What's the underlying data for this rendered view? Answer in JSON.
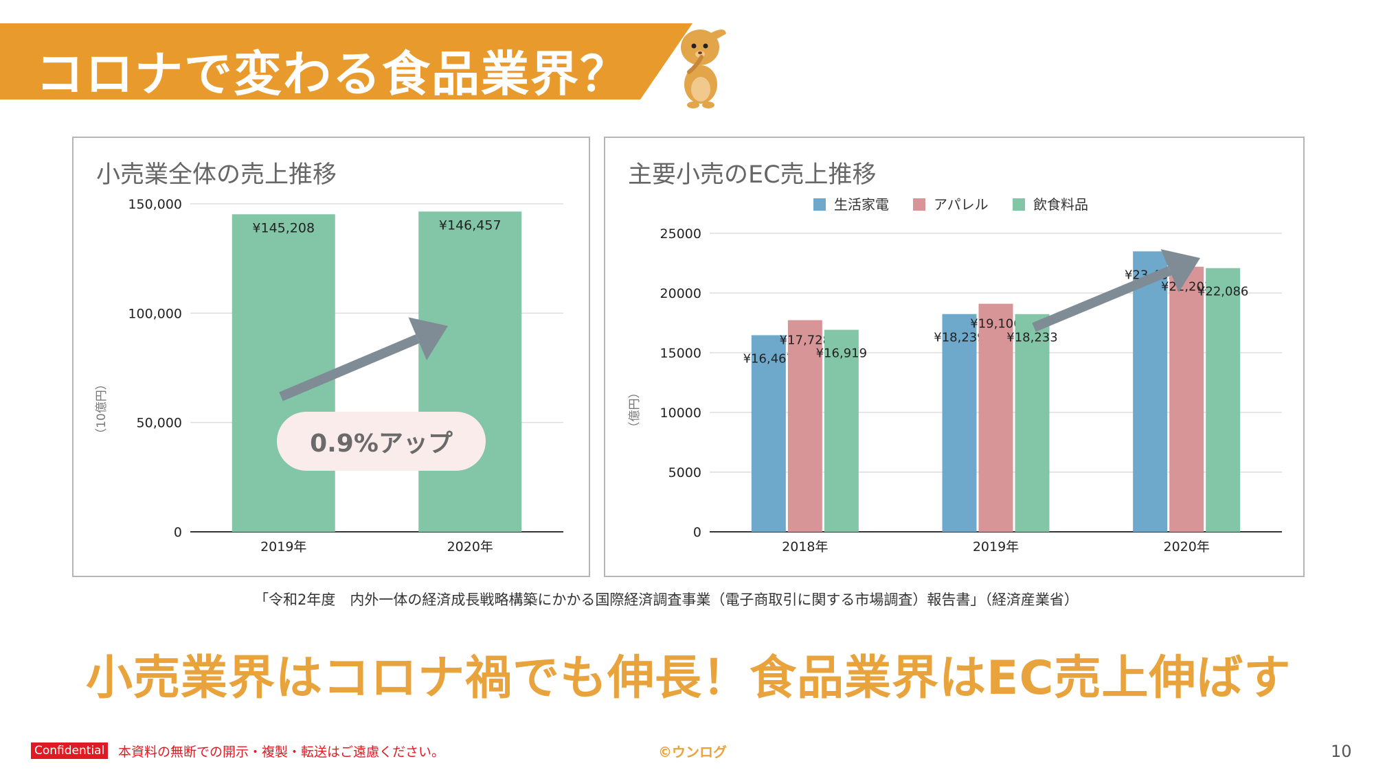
{
  "title": "コロナで変わる食品業界？",
  "colors": {
    "banner": "#e89a2c",
    "headline": "#e8a33d",
    "bar_green": "#83c5a7",
    "bar_blue": "#6ea8cb",
    "bar_pink": "#d89597",
    "arrow": "#7f8c96",
    "confidential_red": "#e01a22"
  },
  "mascot_icon": "mascot-character-icon",
  "left_chart": {
    "title": "小売業全体の売上推移",
    "callout": "0.9%アップ",
    "chart_data": {
      "type": "bar",
      "title": "小売業全体の売上推移",
      "categories": [
        "2019年",
        "2020年"
      ],
      "values": [
        145208,
        146457
      ],
      "data_labels": [
        "¥145,208",
        "¥146,457"
      ],
      "ylabel": "（10億円）",
      "ylim": [
        0,
        150000
      ],
      "yticks": [
        0,
        50000,
        100000,
        150000
      ],
      "ytick_labels": [
        "0",
        "50,000",
        "100,000",
        "150,000"
      ],
      "grid": true,
      "legend": "none"
    }
  },
  "right_chart": {
    "title": "主要小売のEC売上推移",
    "chart_data": {
      "type": "bar",
      "title": "主要小売のEC売上推移",
      "categories": [
        "2018年",
        "2019年",
        "2020年"
      ],
      "series": [
        {
          "name": "生活家電",
          "values": [
            16467,
            18239,
            23489
          ],
          "labels": [
            "¥16,467",
            "¥18,239",
            "¥23,489"
          ],
          "color": "#6ea8cb"
        },
        {
          "name": "アパレル",
          "values": [
            17728,
            19100,
            22203
          ],
          "labels": [
            "¥17,728",
            "¥19,100",
            "¥22,203"
          ],
          "color": "#d89597"
        },
        {
          "name": "飲食料品",
          "values": [
            16919,
            18233,
            22086
          ],
          "labels": [
            "¥16,919",
            "¥18,233",
            "¥22,086"
          ],
          "color": "#83c5a7"
        }
      ],
      "ylabel": "（億円）",
      "ylim": [
        0,
        25000
      ],
      "yticks": [
        0,
        5000,
        10000,
        15000,
        20000,
        25000
      ],
      "ytick_labels": [
        "0",
        "5000",
        "10000",
        "15000",
        "20000",
        "25000"
      ],
      "grid": true,
      "legend": "top"
    }
  },
  "source": "「令和2年度　内外一体の経済成長戦略構築にかかる国際経済調査事業（電子商取引に関する市場調査）報告書」（経済産業省）",
  "headline": "小売業界はコロナ禍でも伸長！食品業界はEC売上伸ばす",
  "footer": {
    "badge": "Confidential",
    "note": "本資料の無断での開示・複製・転送はご遠慮ください。",
    "brand": "©ウンログ",
    "page_number": "10"
  }
}
